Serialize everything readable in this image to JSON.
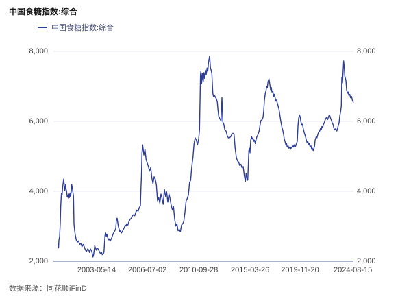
{
  "header": {
    "title": "中国食糖指数:综合"
  },
  "legend": {
    "label": "中国食糖指数:综合"
  },
  "footer": {
    "source": "数据来源：同花顺iFinD"
  },
  "colors": {
    "line": "#2E3D96",
    "grid": "#E9EAF2",
    "axis": "#A9B2CE",
    "tick_text": "#404040"
  },
  "chart_data": {
    "type": "line",
    "title": "中国食糖指数:综合",
    "series_name": "中国食糖指数:综合",
    "xlabel": "",
    "ylabel": "",
    "ylim": [
      2000,
      8000
    ],
    "grid": true,
    "legend_position": "top-left",
    "y_ticks": [
      {
        "value": 8000,
        "label": "8,000"
      },
      {
        "value": 6000,
        "label": "6,000"
      },
      {
        "value": 4000,
        "label": "4,000"
      },
      {
        "value": 2000,
        "label": "2,000"
      }
    ],
    "x_ticks": [
      {
        "f": 0.13,
        "label": "2003-05-14"
      },
      {
        "f": 0.302,
        "label": "2006-07-02"
      },
      {
        "f": 0.476,
        "label": "2010-09-28"
      },
      {
        "f": 0.65,
        "label": "2015-03-26"
      },
      {
        "f": 0.819,
        "label": "2019-11-20"
      },
      {
        "f": 0.998,
        "label": "2024-08-15"
      }
    ],
    "points": [
      [
        0.0,
        2500
      ],
      [
        0.0012,
        2380
      ],
      [
        0.0023,
        2600
      ],
      [
        0.0046,
        2700
      ],
      [
        0.007,
        3100
      ],
      [
        0.0086,
        3600
      ],
      [
        0.0109,
        3950
      ],
      [
        0.0132,
        3900
      ],
      [
        0.0146,
        4085
      ],
      [
        0.0169,
        4250
      ],
      [
        0.0186,
        4350
      ],
      [
        0.0209,
        4120
      ],
      [
        0.0225,
        4020
      ],
      [
        0.0248,
        4185
      ],
      [
        0.0262,
        4085
      ],
      [
        0.0285,
        3990
      ],
      [
        0.0302,
        3855
      ],
      [
        0.0325,
        3890
      ],
      [
        0.0341,
        3790
      ],
      [
        0.0364,
        3920
      ],
      [
        0.0378,
        3820
      ],
      [
        0.0401,
        3955
      ],
      [
        0.0418,
        3855
      ],
      [
        0.0441,
        3990
      ],
      [
        0.0457,
        4185
      ],
      [
        0.048,
        4085
      ],
      [
        0.0494,
        3990
      ],
      [
        0.0517,
        3855
      ],
      [
        0.0534,
        3070
      ],
      [
        0.0557,
        2870
      ],
      [
        0.058,
        2740
      ],
      [
        0.061,
        2610
      ],
      [
        0.065,
        2545
      ],
      [
        0.0689,
        2580
      ],
      [
        0.0726,
        2480
      ],
      [
        0.0766,
        2510
      ],
      [
        0.0805,
        2415
      ],
      [
        0.0842,
        2480
      ],
      [
        0.0882,
        2415
      ],
      [
        0.0921,
        2315
      ],
      [
        0.0958,
        2280
      ],
      [
        0.0998,
        2350
      ],
      [
        0.1037,
        2315
      ],
      [
        0.106,
        2250
      ],
      [
        0.1091,
        2350
      ],
      [
        0.1137,
        2280
      ],
      [
        0.1176,
        2120
      ],
      [
        0.12,
        2185
      ],
      [
        0.1237,
        2445
      ],
      [
        0.126,
        2380
      ],
      [
        0.1292,
        2315
      ],
      [
        0.1316,
        2380
      ],
      [
        0.1353,
        2350
      ],
      [
        0.1392,
        2280
      ],
      [
        0.1432,
        2215
      ],
      [
        0.1469,
        2250
      ],
      [
        0.1492,
        2185
      ],
      [
        0.1525,
        2215
      ],
      [
        0.1548,
        2250
      ],
      [
        0.1585,
        2740
      ],
      [
        0.1608,
        2805
      ],
      [
        0.1624,
        2710
      ],
      [
        0.1647,
        2775
      ],
      [
        0.1678,
        2675
      ],
      [
        0.1701,
        2610
      ],
      [
        0.1724,
        2640
      ],
      [
        0.1757,
        2575
      ],
      [
        0.178,
        2610
      ],
      [
        0.1817,
        2675
      ],
      [
        0.184,
        2740
      ],
      [
        0.1872,
        2805
      ],
      [
        0.1896,
        2840
      ],
      [
        0.1919,
        2870
      ],
      [
        0.1949,
        2935
      ],
      [
        0.1972,
        3200
      ],
      [
        0.1995,
        3230
      ],
      [
        0.2012,
        3135
      ],
      [
        0.2035,
        3005
      ],
      [
        0.2065,
        2905
      ],
      [
        0.2088,
        2840
      ],
      [
        0.2111,
        2870
      ],
      [
        0.2142,
        2805
      ],
      [
        0.2165,
        2840
      ],
      [
        0.2204,
        2905
      ],
      [
        0.2243,
        2970
      ],
      [
        0.2267,
        3035
      ],
      [
        0.2297,
        3005
      ],
      [
        0.232,
        3070
      ],
      [
        0.2359,
        3035
      ],
      [
        0.2397,
        3135
      ],
      [
        0.2436,
        3200
      ],
      [
        0.2475,
        3230
      ],
      [
        0.2513,
        3300
      ],
      [
        0.2552,
        3330
      ],
      [
        0.2591,
        3300
      ],
      [
        0.2629,
        3400
      ],
      [
        0.2668,
        3460
      ],
      [
        0.2707,
        3430
      ],
      [
        0.2745,
        3530
      ],
      [
        0.2784,
        3590
      ],
      [
        0.2803,
        4100
      ],
      [
        0.2819,
        4450
      ],
      [
        0.2838,
        5100
      ],
      [
        0.2861,
        5330
      ],
      [
        0.29,
        5035
      ],
      [
        0.294,
        5200
      ],
      [
        0.2977,
        4905
      ],
      [
        0.3016,
        4805
      ],
      [
        0.3056,
        4710
      ],
      [
        0.3093,
        4575
      ],
      [
        0.3132,
        4675
      ],
      [
        0.3172,
        4380
      ],
      [
        0.3209,
        4215
      ],
      [
        0.3248,
        4415
      ],
      [
        0.3287,
        4345
      ],
      [
        0.3325,
        4185
      ],
      [
        0.3364,
        3725
      ],
      [
        0.3404,
        3825
      ],
      [
        0.3441,
        3660
      ],
      [
        0.348,
        3920
      ],
      [
        0.352,
        3790
      ],
      [
        0.3557,
        3625
      ],
      [
        0.3596,
        4050
      ],
      [
        0.3636,
        3855
      ],
      [
        0.3673,
        3985
      ],
      [
        0.3712,
        3690
      ],
      [
        0.3752,
        3920
      ],
      [
        0.3789,
        3790
      ],
      [
        0.3828,
        3595
      ],
      [
        0.3868,
        3460
      ],
      [
        0.3905,
        3560
      ],
      [
        0.3944,
        3200
      ],
      [
        0.3984,
        3005
      ],
      [
        0.4021,
        3070
      ],
      [
        0.406,
        2870
      ],
      [
        0.41,
        2905
      ],
      [
        0.4137,
        2840
      ],
      [
        0.4176,
        3035
      ],
      [
        0.4216,
        3070
      ],
      [
        0.4253,
        3135
      ],
      [
        0.4292,
        3400
      ],
      [
        0.4332,
        3725
      ],
      [
        0.4369,
        3790
      ],
      [
        0.4408,
        3890
      ],
      [
        0.4448,
        4250
      ],
      [
        0.4485,
        4315
      ],
      [
        0.4524,
        4710
      ],
      [
        0.4564,
        4970
      ],
      [
        0.4601,
        5365
      ],
      [
        0.464,
        5530
      ],
      [
        0.468,
        5460
      ],
      [
        0.4717,
        5330
      ],
      [
        0.4756,
        5495
      ],
      [
        0.4787,
        5760
      ],
      [
        0.4819,
        7330
      ],
      [
        0.4833,
        7430
      ],
      [
        0.4856,
        7070
      ],
      [
        0.488,
        7365
      ],
      [
        0.4912,
        7135
      ],
      [
        0.4935,
        7395
      ],
      [
        0.4958,
        7230
      ],
      [
        0.4988,
        7460
      ],
      [
        0.5012,
        7330
      ],
      [
        0.5042,
        7525
      ],
      [
        0.5065,
        7430
      ],
      [
        0.5088,
        7660
      ],
      [
        0.5128,
        7870
      ],
      [
        0.5158,
        7525
      ],
      [
        0.5181,
        7460
      ],
      [
        0.5204,
        7365
      ],
      [
        0.5237,
        6805
      ],
      [
        0.526,
        6710
      ],
      [
        0.5297,
        6740
      ],
      [
        0.5336,
        6675
      ],
      [
        0.536,
        6640
      ],
      [
        0.539,
        6545
      ],
      [
        0.5413,
        6315
      ],
      [
        0.5436,
        6150
      ],
      [
        0.5469,
        6085
      ],
      [
        0.5492,
        6050
      ],
      [
        0.5515,
        6005
      ],
      [
        0.5545,
        6675
      ],
      [
        0.5575,
        5985
      ],
      [
        0.5608,
        5920
      ],
      [
        0.5645,
        5755
      ],
      [
        0.5684,
        5725
      ],
      [
        0.5724,
        5595
      ],
      [
        0.5761,
        5530
      ],
      [
        0.58,
        5530
      ],
      [
        0.584,
        5560
      ],
      [
        0.5877,
        5625
      ],
      [
        0.5916,
        5660
      ],
      [
        0.5955,
        5625
      ],
      [
        0.5993,
        5230
      ],
      [
        0.6032,
        4970
      ],
      [
        0.6071,
        4870
      ],
      [
        0.6109,
        4840
      ],
      [
        0.6148,
        4740
      ],
      [
        0.6187,
        4775
      ],
      [
        0.6225,
        4675
      ],
      [
        0.6264,
        4710
      ],
      [
        0.6304,
        4445
      ],
      [
        0.6341,
        4280
      ],
      [
        0.6364,
        4510
      ],
      [
        0.6397,
        4380
      ],
      [
        0.642,
        4315
      ],
      [
        0.6457,
        5165
      ],
      [
        0.648,
        5230
      ],
      [
        0.6497,
        5100
      ],
      [
        0.652,
        5460
      ],
      [
        0.655,
        5560
      ],
      [
        0.6573,
        5495
      ],
      [
        0.6596,
        5530
      ],
      [
        0.6629,
        5430
      ],
      [
        0.6652,
        5460
      ],
      [
        0.6675,
        5365
      ],
      [
        0.6706,
        5495
      ],
      [
        0.6729,
        5560
      ],
      [
        0.6768,
        5625
      ],
      [
        0.6805,
        5725
      ],
      [
        0.6861,
        6020
      ],
      [
        0.6907,
        6050
      ],
      [
        0.6937,
        6115
      ],
      [
        0.6961,
        6300
      ],
      [
        0.6984,
        6600
      ],
      [
        0.7014,
        6805
      ],
      [
        0.7037,
        6870
      ],
      [
        0.706,
        7000
      ],
      [
        0.7083,
        6970
      ],
      [
        0.7107,
        7135
      ],
      [
        0.7139,
        7215
      ],
      [
        0.717,
        7050
      ],
      [
        0.7193,
        6905
      ],
      [
        0.7216,
        6970
      ],
      [
        0.7239,
        6840
      ],
      [
        0.727,
        6870
      ],
      [
        0.7294,
        6710
      ],
      [
        0.7317,
        6775
      ],
      [
        0.7349,
        6675
      ],
      [
        0.7372,
        6577
      ],
      [
        0.7395,
        6610
      ],
      [
        0.7425,
        6510
      ],
      [
        0.7448,
        6445
      ],
      [
        0.7479,
        6345
      ],
      [
        0.7502,
        6215
      ],
      [
        0.7525,
        6085
      ],
      [
        0.7557,
        5920
      ],
      [
        0.7581,
        5820
      ],
      [
        0.7604,
        5755
      ],
      [
        0.7634,
        5625
      ],
      [
        0.7657,
        5495
      ],
      [
        0.768,
        5430
      ],
      [
        0.7711,
        5330
      ],
      [
        0.7734,
        5365
      ],
      [
        0.7757,
        5265
      ],
      [
        0.7789,
        5298
      ],
      [
        0.7812,
        5232
      ],
      [
        0.7835,
        5265
      ],
      [
        0.7866,
        5200
      ],
      [
        0.7889,
        5265
      ],
      [
        0.7912,
        5232
      ],
      [
        0.7942,
        5298
      ],
      [
        0.7965,
        5265
      ],
      [
        0.7988,
        5330
      ],
      [
        0.802,
        5265
      ],
      [
        0.8044,
        5298
      ],
      [
        0.8067,
        5365
      ],
      [
        0.8097,
        5430
      ],
      [
        0.8121,
        5855
      ],
      [
        0.8144,
        6085
      ],
      [
        0.8174,
        6185
      ],
      [
        0.8197,
        6115
      ],
      [
        0.8221,
        5985
      ],
      [
        0.8253,
        5890
      ],
      [
        0.8276,
        5920
      ],
      [
        0.8299,
        5790
      ],
      [
        0.8329,
        5690
      ],
      [
        0.8353,
        5625
      ],
      [
        0.8376,
        5560
      ],
      [
        0.8407,
        5460
      ],
      [
        0.8429,
        5395
      ],
      [
        0.8452,
        5430
      ],
      [
        0.8485,
        5330
      ],
      [
        0.8508,
        5365
      ],
      [
        0.8531,
        5265
      ],
      [
        0.8561,
        5298
      ],
      [
        0.8585,
        5200
      ],
      [
        0.8608,
        5232
      ],
      [
        0.8638,
        5165
      ],
      [
        0.8661,
        5232
      ],
      [
        0.8684,
        5298
      ],
      [
        0.8701,
        5460
      ],
      [
        0.874,
        5560
      ],
      [
        0.8763,
        5530
      ],
      [
        0.8794,
        5625
      ],
      [
        0.8817,
        5690
      ],
      [
        0.8856,
        5725
      ],
      [
        0.8879,
        5790
      ],
      [
        0.891,
        5755
      ],
      [
        0.8933,
        5855
      ],
      [
        0.8956,
        5820
      ],
      [
        0.8986,
        5920
      ],
      [
        0.901,
        5955
      ],
      [
        0.9033,
        6020
      ],
      [
        0.9065,
        6085
      ],
      [
        0.9088,
        6115
      ],
      [
        0.9126,
        6050
      ],
      [
        0.9149,
        6115
      ],
      [
        0.9181,
        6185
      ],
      [
        0.9204,
        6150
      ],
      [
        0.9227,
        6085
      ],
      [
        0.9258,
        6020
      ],
      [
        0.9281,
        5955
      ],
      [
        0.9304,
        5920
      ],
      [
        0.9334,
        5820
      ],
      [
        0.9358,
        5755
      ],
      [
        0.9397,
        5790
      ],
      [
        0.9436,
        5725
      ],
      [
        0.946,
        5790
      ],
      [
        0.949,
        5890
      ],
      [
        0.9513,
        5955
      ],
      [
        0.9536,
        6150
      ],
      [
        0.9566,
        6280
      ],
      [
        0.959,
        6450
      ],
      [
        0.9606,
        7265
      ],
      [
        0.9629,
        7100
      ],
      [
        0.9669,
        7725
      ],
      [
        0.9692,
        7525
      ],
      [
        0.9706,
        7300
      ],
      [
        0.9729,
        7230
      ],
      [
        0.9745,
        7165
      ],
      [
        0.9768,
        6905
      ],
      [
        0.9799,
        6805
      ],
      [
        0.9822,
        6840
      ],
      [
        0.9845,
        6740
      ],
      [
        0.9877,
        6775
      ],
      [
        0.99,
        6675
      ],
      [
        0.9938,
        6710
      ],
      [
        0.9961,
        6610
      ],
      [
        0.9993,
        6545
      ]
    ]
  }
}
